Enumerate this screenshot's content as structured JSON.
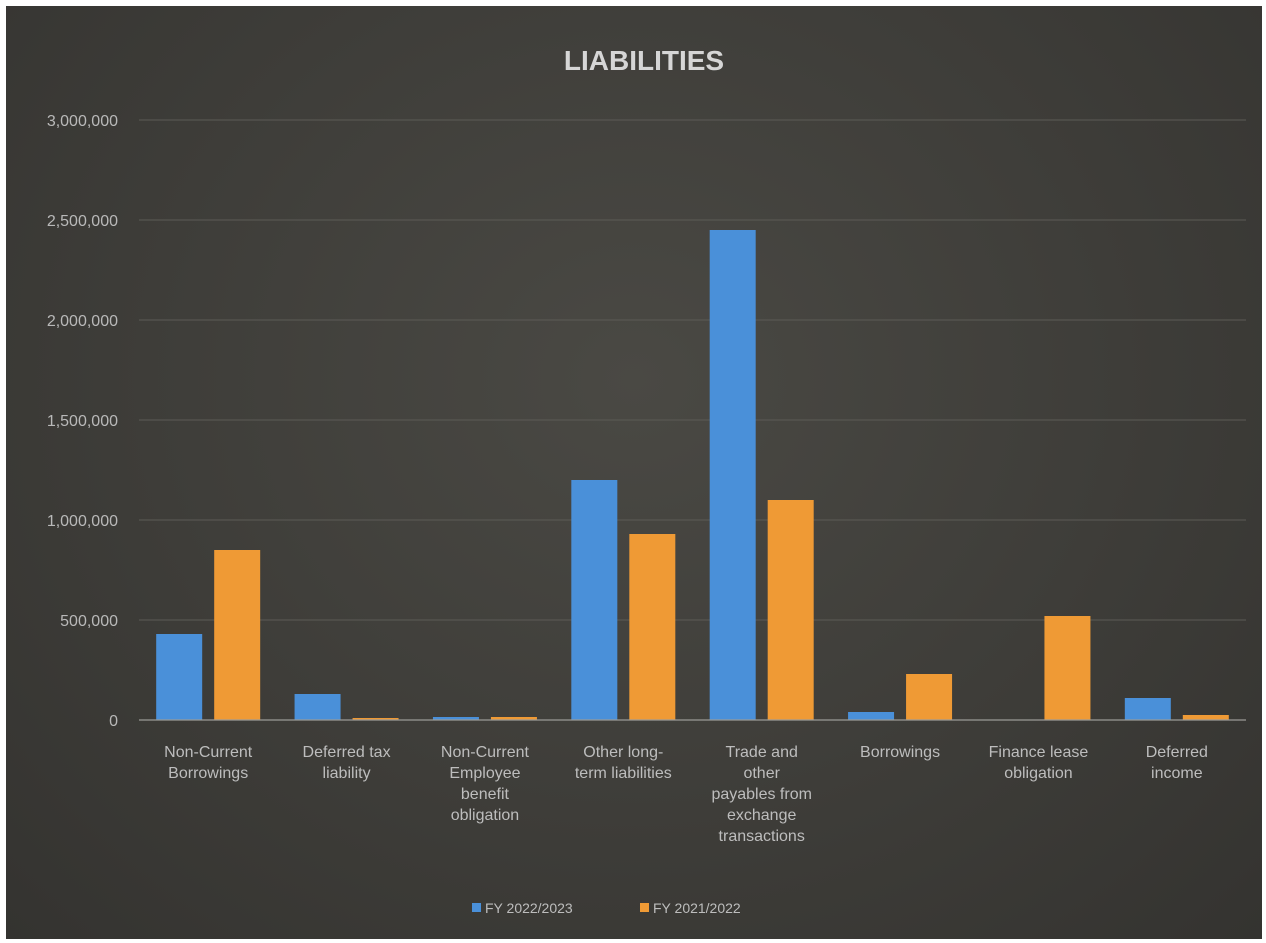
{
  "chart_data": {
    "type": "bar",
    "title": "LIABILITIES",
    "xlabel": "",
    "ylabel": "",
    "ylim": [
      0,
      3000000
    ],
    "y_ticks": [
      "0",
      "500,000",
      "1,000,000",
      "1,500,000",
      "2,000,000",
      "2,500,000",
      "3,000,000"
    ],
    "y_tick_values": [
      0,
      500000,
      1000000,
      1500000,
      2000000,
      2500000,
      3000000
    ],
    "grid": true,
    "legend_position": "bottom",
    "categories": [
      [
        "Non-Current",
        "Borrowings"
      ],
      [
        "Deferred tax",
        "liability"
      ],
      [
        "Non-Current",
        "Employee",
        "benefit",
        "obligation"
      ],
      [
        "Other long-",
        "term liabilities"
      ],
      [
        "Trade and",
        "other",
        "payables from",
        "exchange",
        "transactions"
      ],
      [
        "Borrowings"
      ],
      [
        "Finance lease",
        "obligation"
      ],
      [
        "Deferred",
        "income"
      ]
    ],
    "series": [
      {
        "name": "FY 2022/2023",
        "color": "#4a90d9",
        "values": [
          430000,
          130000,
          15000,
          1200000,
          2450000,
          40000,
          0,
          110000
        ]
      },
      {
        "name": "FY 2021/2022",
        "color": "#ef9a35",
        "values": [
          850000,
          10000,
          15000,
          930000,
          1100000,
          230000,
          520000,
          25000
        ]
      }
    ]
  }
}
